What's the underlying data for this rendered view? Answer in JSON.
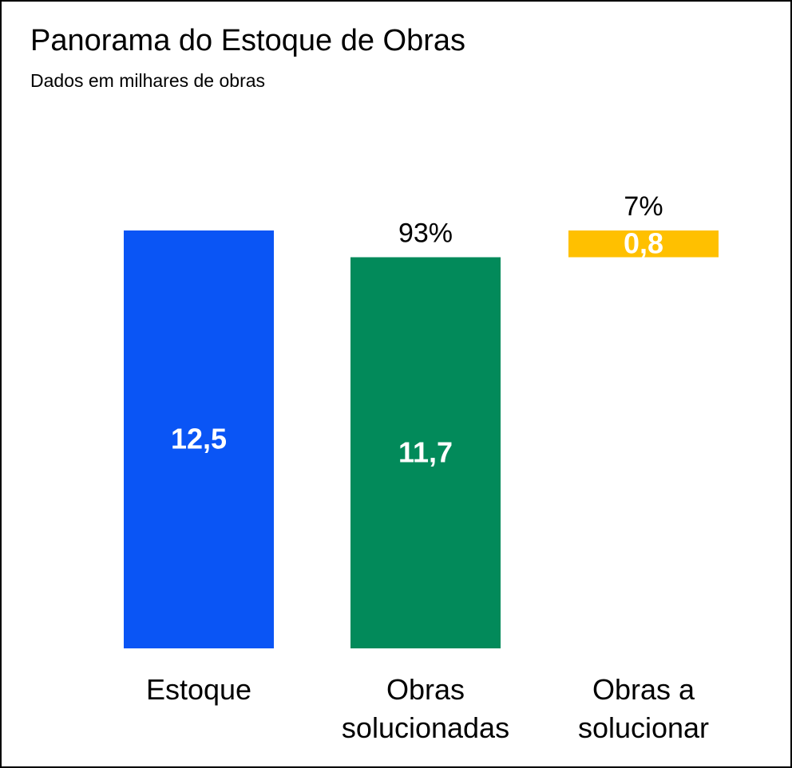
{
  "chart_data": {
    "type": "waterfall",
    "title": "Panorama do Estoque de Obras",
    "subtitle": "Dados em milhares de obras",
    "categories": [
      "Estoque",
      "Obras solucionadas",
      "Obras a solucionar"
    ],
    "measure": [
      "absolute",
      "absolute",
      "relative"
    ],
    "values": [
      12.5,
      11.7,
      0.8
    ],
    "value_labels": [
      "12,5",
      "11,7",
      "0,8"
    ],
    "shares": [
      null,
      93,
      7
    ],
    "share_labels": [
      null,
      "93%",
      "7%"
    ],
    "colors": [
      "#0a55f5",
      "#028a5a",
      "#ffc000"
    ],
    "ylim": [
      0,
      12.5
    ]
  }
}
